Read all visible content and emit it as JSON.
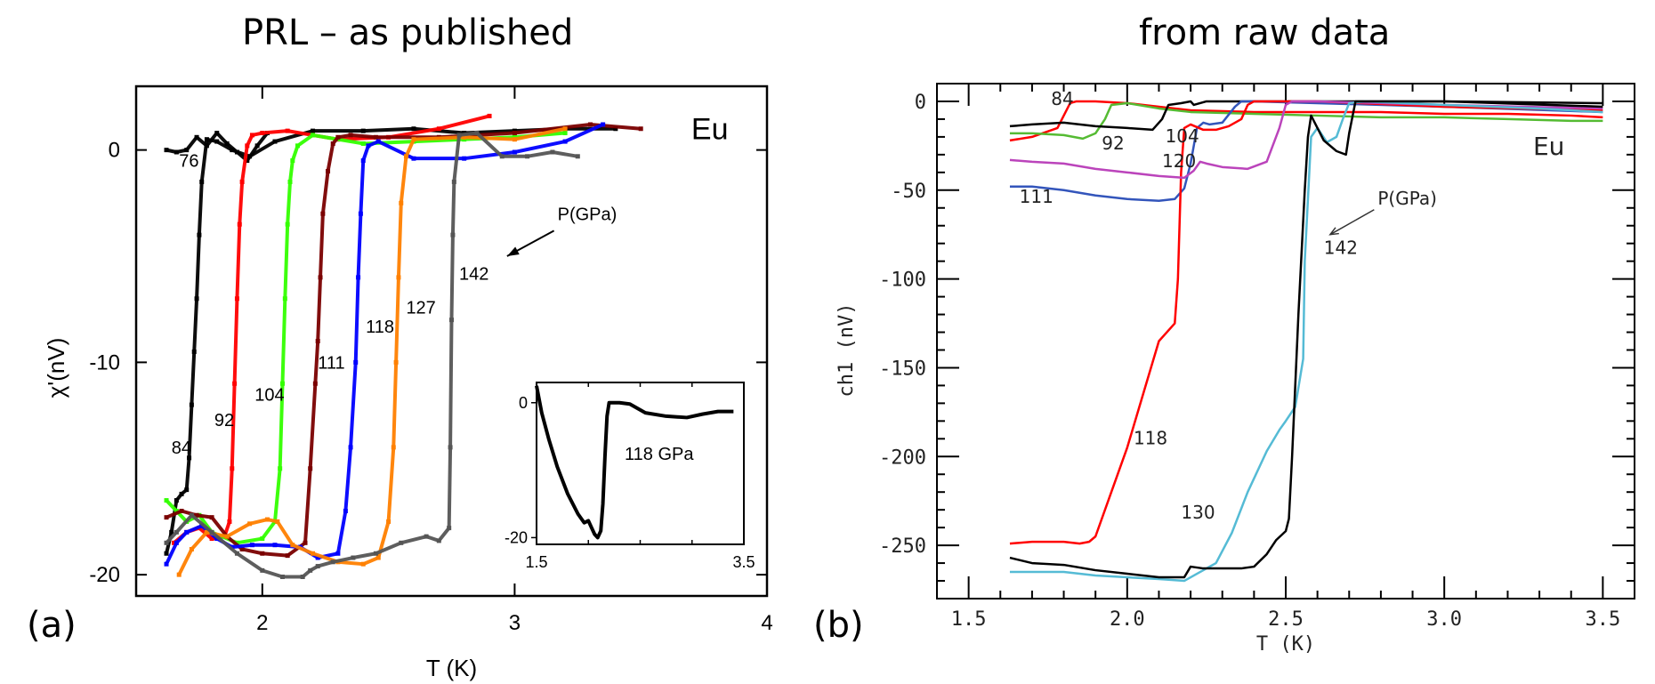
{
  "titles": {
    "left": "PRL – as published",
    "right": "from raw data"
  },
  "panel_labels": {
    "a": "(a)",
    "b": "(b)"
  },
  "chart_data": [
    {
      "id": "a",
      "type": "scatter",
      "title": "PRL – as published",
      "xlabel": "T (K)",
      "ylabel": "χ'(nV)",
      "xlim": [
        1.5,
        4.0
      ],
      "ylim": [
        -21,
        3
      ],
      "xticks": [
        2,
        3,
        4
      ],
      "yticks": [
        0,
        -10,
        -20
      ],
      "grid": false,
      "annotations": [
        {
          "text": "Eu",
          "x": 3.7,
          "y": 0.5,
          "size": "large"
        },
        {
          "text": "P(GPa)",
          "x": 3.17,
          "y": -3.3,
          "arrow_to": [
            2.97,
            -5.0
          ]
        },
        {
          "text": "76",
          "x": 1.67,
          "y": -0.8
        },
        {
          "text": "84",
          "x": 1.64,
          "y": -14.3
        },
        {
          "text": "92",
          "x": 1.81,
          "y": -13.0
        },
        {
          "text": "104",
          "x": 1.97,
          "y": -11.8
        },
        {
          "text": "111",
          "x": 2.22,
          "y": -10.3
        },
        {
          "text": "118",
          "x": 2.41,
          "y": -8.6
        },
        {
          "text": "127",
          "x": 2.57,
          "y": -7.7
        },
        {
          "text": "142",
          "x": 2.78,
          "y": -6.1
        }
      ],
      "series": [
        {
          "name": "76",
          "color": "#000000",
          "x": [
            1.62,
            1.66,
            1.7,
            1.74,
            1.78,
            1.82,
            1.86,
            1.9,
            1.94,
            1.98,
            2.02
          ],
          "y": [
            0.0,
            -0.1,
            0.0,
            0.6,
            0.2,
            0.8,
            0.3,
            -0.1,
            -0.5,
            0.2,
            0.8
          ]
        },
        {
          "name": "84",
          "color": "#000000",
          "x": [
            1.62,
            1.64,
            1.66,
            1.68,
            1.7,
            1.71,
            1.72,
            1.73,
            1.74,
            1.75,
            1.76,
            1.78,
            1.82,
            1.88,
            1.95,
            2.05,
            2.2,
            2.4,
            2.6,
            2.8,
            3.0,
            3.2,
            3.4
          ],
          "y": [
            -19.0,
            -18.0,
            -16.5,
            -16.2,
            -16.0,
            -14.5,
            -12.0,
            -9.5,
            -7.0,
            -4.0,
            -1.5,
            0.5,
            0.4,
            0.0,
            -0.3,
            0.4,
            0.9,
            0.9,
            1.0,
            0.8,
            0.9,
            1.0,
            1.0
          ]
        },
        {
          "name": "92",
          "color": "#ff0000",
          "x": [
            1.65,
            1.7,
            1.75,
            1.8,
            1.85,
            1.87,
            1.88,
            1.89,
            1.9,
            1.91,
            1.92,
            1.94,
            1.96,
            2.0,
            2.1,
            2.2,
            2.3,
            2.5,
            2.7,
            2.9
          ],
          "y": [
            -18.5,
            -18.0,
            -17.8,
            -18.3,
            -18.2,
            -17.5,
            -15.0,
            -11.0,
            -7.0,
            -3.5,
            -1.5,
            0.2,
            0.7,
            0.8,
            0.9,
            0.7,
            0.5,
            0.6,
            1.0,
            1.6
          ]
        },
        {
          "name": "104",
          "color": "#33ff00",
          "x": [
            1.62,
            1.66,
            1.7,
            1.75,
            1.8,
            1.9,
            2.0,
            2.05,
            2.07,
            2.08,
            2.09,
            2.1,
            2.11,
            2.12,
            2.14,
            2.2,
            2.4,
            2.6,
            2.8,
            3.0,
            3.2
          ],
          "y": [
            -16.5,
            -17.0,
            -17.5,
            -17.2,
            -18.0,
            -18.5,
            -18.3,
            -17.5,
            -15.0,
            -11.0,
            -7.0,
            -3.5,
            -1.5,
            -0.5,
            0.2,
            0.7,
            0.3,
            0.4,
            0.5,
            0.6,
            0.8
          ]
        },
        {
          "name": "111",
          "color": "#7a0000",
          "x": [
            1.62,
            1.68,
            1.74,
            1.8,
            1.86,
            1.92,
            2.0,
            2.1,
            2.17,
            2.19,
            2.21,
            2.22,
            2.23,
            2.24,
            2.26,
            2.28,
            2.3,
            2.35,
            2.45,
            2.7,
            3.0,
            3.3,
            3.5
          ],
          "y": [
            -17.3,
            -17.0,
            -17.2,
            -17.3,
            -18.2,
            -18.8,
            -19.0,
            -19.1,
            -18.5,
            -15.0,
            -11.0,
            -9.0,
            -6.0,
            -3.0,
            -1.0,
            0.3,
            0.6,
            0.7,
            0.6,
            0.6,
            0.8,
            1.2,
            1.0
          ]
        },
        {
          "name": "118",
          "color": "#0000ff",
          "x": [
            1.62,
            1.66,
            1.7,
            1.76,
            1.82,
            1.88,
            1.96,
            2.05,
            2.15,
            2.22,
            2.3,
            2.33,
            2.35,
            2.37,
            2.38,
            2.39,
            2.4,
            2.42,
            2.46,
            2.6,
            2.8,
            3.0,
            3.2,
            3.35
          ],
          "y": [
            -19.5,
            -18.5,
            -18.0,
            -17.7,
            -18.3,
            -18.7,
            -18.6,
            -18.6,
            -18.7,
            -19.2,
            -19.0,
            -17.0,
            -14.0,
            -10.0,
            -6.0,
            -3.0,
            -0.5,
            0.2,
            0.4,
            -0.4,
            -0.4,
            -0.1,
            0.4,
            1.2
          ]
        },
        {
          "name": "127",
          "color": "#ff8000",
          "x": [
            1.67,
            1.72,
            1.78,
            1.86,
            1.95,
            2.02,
            2.06,
            2.12,
            2.2,
            2.3,
            2.4,
            2.46,
            2.5,
            2.52,
            2.53,
            2.54,
            2.55,
            2.57,
            2.6,
            2.8,
            3.0,
            3.2
          ],
          "y": [
            -20.0,
            -18.8,
            -18.0,
            -18.2,
            -17.6,
            -17.4,
            -17.5,
            -18.6,
            -19.0,
            -19.4,
            -19.5,
            -19.2,
            -17.5,
            -14.0,
            -10.0,
            -6.0,
            -2.5,
            -0.3,
            0.5,
            0.6,
            0.5,
            1.0
          ]
        },
        {
          "name": "142",
          "color": "#555555",
          "x": [
            1.62,
            1.66,
            1.72,
            1.8,
            1.9,
            2.0,
            2.08,
            2.16,
            2.19,
            2.22,
            2.28,
            2.36,
            2.45,
            2.55,
            2.65,
            2.7,
            2.74,
            2.745,
            2.75,
            2.755,
            2.76,
            2.78,
            2.85,
            2.95,
            3.05,
            3.15,
            3.25
          ],
          "y": [
            -18.5,
            -18.0,
            -17.2,
            -18.0,
            -19.0,
            -19.8,
            -20.1,
            -20.1,
            -19.8,
            -19.6,
            -19.4,
            -19.2,
            -19.0,
            -18.5,
            -18.2,
            -18.4,
            -17.8,
            -14.0,
            -8.0,
            -4.0,
            -1.5,
            0.7,
            0.8,
            -0.3,
            -0.3,
            -0.1,
            -0.3
          ]
        }
      ],
      "inset": {
        "label": "118 GPa",
        "xlim": [
          1.5,
          3.5
        ],
        "ylim": [
          -21,
          3
        ],
        "xticks": [
          1.5,
          3.5
        ],
        "yticks": [
          0,
          -20
        ],
        "series": {
          "color": "#000000",
          "x": [
            1.5,
            1.55,
            1.62,
            1.7,
            1.8,
            1.9,
            1.96,
            2.0,
            2.03,
            2.06,
            2.09,
            2.12,
            2.14,
            2.16,
            2.18,
            2.2,
            2.25,
            2.3,
            2.4,
            2.55,
            2.75,
            2.95,
            3.1,
            3.25,
            3.4
          ],
          "y": [
            2.5,
            -1.5,
            -5.5,
            -9.5,
            -13.5,
            -16.5,
            -17.8,
            -17.5,
            -18.5,
            -19.5,
            -20.0,
            -19.0,
            -15.0,
            -8.0,
            -2.0,
            0.0,
            0.0,
            0.0,
            -0.2,
            -1.5,
            -2.0,
            -2.2,
            -1.7,
            -1.3,
            -1.3
          ]
        }
      }
    },
    {
      "id": "b",
      "type": "line",
      "title": "from raw data",
      "xlabel": "T (K)",
      "ylabel": "ch1 (nV)",
      "xlim": [
        1.4,
        3.6
      ],
      "ylim": [
        -280,
        10
      ],
      "xticks": [
        1.5,
        2.0,
        2.5,
        3.0,
        3.5
      ],
      "yticks": [
        0,
        -50,
        -100,
        -150,
        -200,
        -250
      ],
      "grid": false,
      "annotations": [
        {
          "text": "Eu",
          "x": 3.28,
          "y": -30,
          "size": "large"
        },
        {
          "text": "P(GPa)",
          "x": 2.79,
          "y": -58,
          "arrow_to": [
            2.64,
            -75
          ]
        },
        {
          "text": "84",
          "x": 1.76,
          "y": -2
        },
        {
          "text": "92",
          "x": 1.92,
          "y": -27
        },
        {
          "text": "104",
          "x": 2.12,
          "y": -23
        },
        {
          "text": "120",
          "x": 2.11,
          "y": -37
        },
        {
          "text": "111",
          "x": 1.66,
          "y": -57
        },
        {
          "text": "142",
          "x": 2.62,
          "y": -86
        },
        {
          "text": "118",
          "x": 2.02,
          "y": -193
        },
        {
          "text": "130",
          "x": 2.17,
          "y": -235
        }
      ],
      "series": [
        {
          "name": "84",
          "color": "#ff0000",
          "x": [
            1.63,
            1.7,
            1.78,
            1.8,
            1.82,
            1.84,
            1.9,
            2.0,
            2.1,
            2.2,
            2.4,
            2.6,
            2.8,
            3.0,
            3.2,
            3.4,
            3.5
          ],
          "y": [
            -22,
            -20,
            -15,
            -8,
            -1,
            0,
            0,
            -1,
            -3,
            -5,
            -6,
            -6,
            -6,
            -7,
            -7,
            -8,
            -9
          ]
        },
        {
          "name": "92",
          "color": "#55bb33",
          "x": [
            1.63,
            1.7,
            1.8,
            1.86,
            1.9,
            1.93,
            1.95,
            2.0,
            2.1,
            2.2,
            2.4,
            2.6,
            2.8,
            3.0,
            3.2,
            3.4,
            3.5
          ],
          "y": [
            -18,
            -18,
            -19,
            -21,
            -18,
            -10,
            -2,
            -1,
            -4,
            -6,
            -7,
            -8,
            -9,
            -9,
            -10,
            -11,
            -11
          ]
        },
        {
          "name": "104",
          "color": "#000000",
          "x": [
            1.63,
            1.7,
            1.8,
            1.9,
            2.0,
            2.08,
            2.11,
            2.13,
            2.17,
            2.2,
            2.21,
            2.25,
            2.5,
            3.0,
            3.5
          ],
          "y": [
            -14,
            -13,
            -12,
            -14,
            -15,
            -16,
            -10,
            -2,
            -1,
            0,
            -2,
            0,
            0,
            0,
            -1
          ]
        },
        {
          "name": "111",
          "color": "#3355bb",
          "x": [
            1.63,
            1.7,
            1.8,
            1.9,
            2.0,
            2.1,
            2.15,
            2.18,
            2.2,
            2.22,
            2.24,
            2.26,
            2.3,
            2.34,
            2.36,
            2.4,
            2.6,
            3.0,
            3.5
          ],
          "y": [
            -48,
            -48,
            -50,
            -53,
            -55,
            -56,
            -55,
            -49,
            -35,
            -15,
            -12,
            -13,
            -12,
            -3,
            0,
            0,
            -1,
            -3,
            -6
          ]
        },
        {
          "name": "118",
          "color": "#ff0000",
          "x": [
            1.63,
            1.7,
            1.8,
            1.85,
            1.88,
            1.9,
            1.95,
            2.0,
            2.05,
            2.1,
            2.15,
            2.16,
            2.17,
            2.18,
            2.2,
            2.24,
            2.28,
            2.32,
            2.36,
            2.38,
            2.4,
            2.6,
            3.0,
            3.5
          ],
          "y": [
            -249,
            -248,
            -248,
            -249,
            -248,
            -245,
            -220,
            -195,
            -165,
            -135,
            -125,
            -100,
            -40,
            -15,
            -13,
            -16,
            -16,
            -14,
            -10,
            -2,
            0,
            0,
            -3,
            -5
          ]
        },
        {
          "name": "120",
          "color": "#bb44bb",
          "x": [
            1.63,
            1.7,
            1.8,
            1.9,
            2.0,
            2.1,
            2.18,
            2.21,
            2.23,
            2.25,
            2.3,
            2.38,
            2.44,
            2.48,
            2.5,
            2.52,
            2.6,
            3.0,
            3.5
          ],
          "y": [
            -33,
            -34,
            -35,
            -38,
            -40,
            -42,
            -43,
            -39,
            -34,
            -35,
            -37,
            -38,
            -34,
            -15,
            -2,
            0,
            0,
            -2,
            -4
          ]
        },
        {
          "name": "130",
          "color": "#55bbd5",
          "x": [
            1.63,
            1.7,
            1.8,
            1.9,
            2.0,
            2.1,
            2.18,
            2.22,
            2.28,
            2.33,
            2.38,
            2.44,
            2.48,
            2.5,
            2.53,
            2.555,
            2.56,
            2.58,
            2.6,
            2.63,
            2.66,
            2.68,
            2.7,
            2.75,
            3.0,
            3.3,
            3.5
          ],
          "y": [
            -265,
            -265,
            -265,
            -267,
            -268,
            -269,
            -270,
            -266,
            -260,
            -243,
            -220,
            -197,
            -185,
            -180,
            -172,
            -145,
            -90,
            -20,
            -15,
            -23,
            -20,
            -10,
            -1,
            0,
            -2,
            -4,
            -6
          ]
        },
        {
          "name": "142",
          "color": "#000000",
          "x": [
            1.63,
            1.7,
            1.8,
            1.9,
            2.0,
            2.1,
            2.18,
            2.2,
            2.24,
            2.3,
            2.36,
            2.4,
            2.44,
            2.47,
            2.5,
            2.51,
            2.52,
            2.54,
            2.56,
            2.57,
            2.58,
            2.62,
            2.66,
            2.69,
            2.7,
            2.72,
            2.75,
            3.0,
            3.5
          ],
          "y": [
            -257,
            -260,
            -261,
            -264,
            -266,
            -268,
            -268,
            -262,
            -263,
            -263,
            -263,
            -262,
            -255,
            -247,
            -242,
            -235,
            -200,
            -120,
            -50,
            -20,
            -8,
            -22,
            -28,
            -30,
            -18,
            0,
            0,
            0,
            -3
          ]
        }
      ]
    }
  ]
}
